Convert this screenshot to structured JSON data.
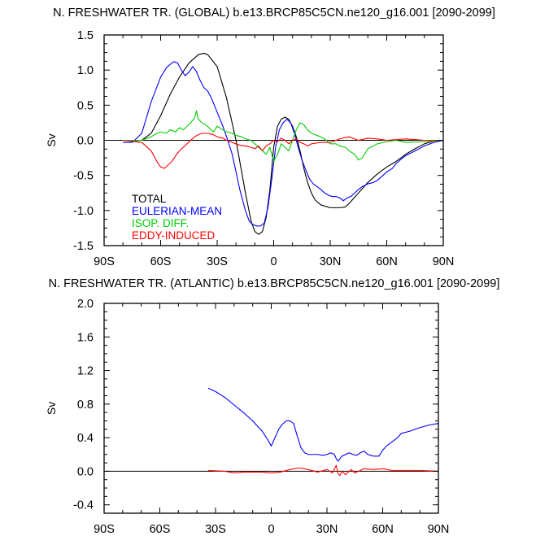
{
  "chart_data": [
    {
      "type": "line",
      "title": "N. FRESHWATER TR. (GLOBAL) b.e13.BRCP85C5CN.ne120_g16.001 [2090-2099]",
      "ylabel": "Sv",
      "xlabel": "",
      "xlim": [
        -90,
        90
      ],
      "ylim": [
        -1.5,
        1.5
      ],
      "xticks": [
        {
          "v": -90,
          "label": "90S"
        },
        {
          "v": -60,
          "label": "60S"
        },
        {
          "v": -30,
          "label": "30S"
        },
        {
          "v": 0,
          "label": "0"
        },
        {
          "v": 30,
          "label": "30N"
        },
        {
          "v": 60,
          "label": "60N"
        },
        {
          "v": 90,
          "label": "90N"
        }
      ],
      "yticks": [
        {
          "v": 1.5,
          "label": "1.5"
        },
        {
          "v": 1.0,
          "label": "1.0"
        },
        {
          "v": 0.5,
          "label": "0.5"
        },
        {
          "v": 0.0,
          "label": "0.0"
        },
        {
          "v": -0.5,
          "label": "-0.5"
        },
        {
          "v": -1.0,
          "label": "-1.0"
        },
        {
          "v": -1.5,
          "label": "-1.5"
        }
      ],
      "zero_line": true,
      "legend_position": "bottom-left",
      "series": [
        {
          "name": "TOTAL",
          "color": "#000000",
          "x": [
            -80,
            -75,
            -70,
            -65,
            -60,
            -55,
            -50,
            -45,
            -40,
            -37,
            -35,
            -30,
            -25,
            -20,
            -15,
            -12,
            -10,
            -8,
            -6,
            -4,
            -2,
            0,
            2,
            4,
            6,
            8,
            10,
            12,
            14,
            16,
            18,
            20,
            22,
            25,
            30,
            35,
            38,
            40,
            45,
            50,
            55,
            60,
            65,
            70,
            75,
            80,
            85,
            90
          ],
          "y": [
            0.0,
            -0.01,
            0.0,
            0.1,
            0.35,
            0.65,
            0.9,
            1.1,
            1.22,
            1.24,
            1.22,
            1.05,
            0.6,
            0.0,
            -0.75,
            -1.15,
            -1.3,
            -1.34,
            -1.3,
            -1.1,
            -0.7,
            -0.1,
            0.2,
            0.3,
            0.33,
            0.3,
            0.2,
            0.05,
            -0.15,
            -0.4,
            -0.6,
            -0.75,
            -0.85,
            -0.92,
            -0.96,
            -0.96,
            -0.95,
            -0.9,
            -0.75,
            -0.6,
            -0.48,
            -0.38,
            -0.3,
            -0.2,
            -0.12,
            -0.05,
            -0.01,
            0.0
          ]
        },
        {
          "name": "EULERIAN-MEAN",
          "color": "#0000ff",
          "x": [
            -80,
            -75,
            -70,
            -65,
            -60,
            -57,
            -55,
            -53,
            -51,
            -49,
            -47,
            -45,
            -43,
            -41,
            -39,
            -37,
            -35,
            -33,
            -30,
            -27,
            -25,
            -22,
            -20,
            -18,
            -15,
            -13,
            -11,
            -9,
            -7,
            -5,
            -3,
            -1,
            1,
            3,
            5,
            7,
            9,
            11,
            13,
            15,
            17,
            19,
            21,
            23,
            25,
            27,
            29,
            31,
            33,
            35,
            37,
            39,
            41,
            43,
            45,
            47,
            50,
            53,
            55,
            58,
            60,
            63,
            65,
            68,
            70,
            75,
            80,
            85,
            90
          ],
          "y": [
            -0.03,
            -0.03,
            0.1,
            0.55,
            0.9,
            1.03,
            1.08,
            1.12,
            1.1,
            1.0,
            0.92,
            0.97,
            1.05,
            0.98,
            0.85,
            0.75,
            0.7,
            0.6,
            0.4,
            0.2,
            0.05,
            -0.2,
            -0.45,
            -0.7,
            -1.0,
            -1.15,
            -1.2,
            -1.22,
            -1.22,
            -1.18,
            -0.95,
            -0.55,
            -0.1,
            0.15,
            0.25,
            0.3,
            0.25,
            0.1,
            -0.1,
            -0.28,
            -0.42,
            -0.55,
            -0.62,
            -0.66,
            -0.7,
            -0.75,
            -0.78,
            -0.8,
            -0.8,
            -0.82,
            -0.86,
            -0.82,
            -0.8,
            -0.75,
            -0.7,
            -0.66,
            -0.62,
            -0.6,
            -0.57,
            -0.5,
            -0.45,
            -0.4,
            -0.33,
            -0.26,
            -0.22,
            -0.15,
            -0.08,
            -0.03,
            0.0
          ]
        },
        {
          "name": "ISOP. DIFF.",
          "color": "#00cc00",
          "x": [
            -80,
            -70,
            -65,
            -62,
            -60,
            -57,
            -55,
            -52,
            -50,
            -48,
            -46,
            -44,
            -42,
            -41,
            -40,
            -38,
            -36,
            -34,
            -32,
            -30,
            -27,
            -25,
            -22,
            -20,
            -17,
            -15,
            -12,
            -10,
            -8,
            -6,
            -4,
            -2,
            0,
            2,
            4,
            6,
            8,
            10,
            12,
            14,
            16,
            18,
            20,
            22,
            25,
            28,
            30,
            33,
            35,
            38,
            40,
            43,
            45,
            47,
            50,
            55,
            60,
            65,
            70,
            80,
            90
          ],
          "y": [
            0.0,
            0.0,
            0.05,
            0.1,
            0.12,
            0.1,
            0.15,
            0.12,
            0.18,
            0.15,
            0.2,
            0.25,
            0.32,
            0.42,
            0.3,
            0.25,
            0.22,
            0.17,
            0.12,
            0.2,
            0.15,
            0.12,
            0.1,
            0.07,
            0.05,
            0.02,
            0.0,
            -0.05,
            -0.1,
            -0.15,
            -0.2,
            -0.1,
            -0.3,
            -0.2,
            -0.05,
            -0.1,
            -0.15,
            0.0,
            0.15,
            0.25,
            0.22,
            0.15,
            0.1,
            0.08,
            0.05,
            0.0,
            -0.05,
            -0.05,
            -0.08,
            -0.1,
            -0.15,
            -0.2,
            -0.28,
            -0.25,
            -0.12,
            -0.05,
            -0.02,
            0.0,
            -0.03,
            -0.02,
            0.0
          ]
        },
        {
          "name": "EDDY-INDUCED",
          "color": "#ff0000",
          "x": [
            -80,
            -70,
            -65,
            -62,
            -60,
            -58,
            -56,
            -54,
            -52,
            -50,
            -48,
            -46,
            -44,
            -42,
            -40,
            -38,
            -35,
            -32,
            -30,
            -27,
            -25,
            -22,
            -20,
            -18,
            -15,
            -12,
            -10,
            -8,
            -6,
            -4,
            -2,
            0,
            2,
            4,
            6,
            8,
            10,
            12,
            14,
            16,
            18,
            20,
            25,
            30,
            35,
            40,
            45,
            50,
            55,
            60,
            70,
            80,
            90
          ],
          "y": [
            0.0,
            -0.03,
            -0.15,
            -0.3,
            -0.38,
            -0.4,
            -0.35,
            -0.3,
            -0.22,
            -0.15,
            -0.1,
            -0.05,
            0.0,
            0.05,
            0.08,
            0.1,
            0.1,
            0.08,
            0.05,
            0.03,
            0.0,
            -0.03,
            -0.05,
            -0.07,
            -0.08,
            -0.1,
            -0.12,
            -0.08,
            -0.15,
            -0.08,
            -0.05,
            0.0,
            -0.02,
            0.03,
            0.0,
            -0.05,
            0.0,
            0.02,
            -0.03,
            -0.05,
            -0.08,
            -0.05,
            -0.03,
            -0.03,
            0.02,
            0.05,
            0.0,
            0.03,
            0.02,
            0.0,
            0.02,
            0.0,
            0.0
          ]
        }
      ]
    },
    {
      "type": "line",
      "title": "N. FRESHWATER TR. (ATLANTIC) b.e13.BRCP85C5CN.ne120_g16.001 [2090-2099]",
      "ylabel": "Sv",
      "xlabel": "",
      "xlim": [
        -90,
        90
      ],
      "ylim": [
        -0.5,
        2.0
      ],
      "xticks": [
        {
          "v": -90,
          "label": "90S"
        },
        {
          "v": -60,
          "label": "60S"
        },
        {
          "v": -30,
          "label": "30S"
        },
        {
          "v": 0,
          "label": "0"
        },
        {
          "v": 30,
          "label": "30N"
        },
        {
          "v": 60,
          "label": "60N"
        },
        {
          "v": 90,
          "label": "90N"
        }
      ],
      "yticks": [
        {
          "v": 2.0,
          "label": "2.0"
        },
        {
          "v": 1.6,
          "label": "1.6"
        },
        {
          "v": 1.2,
          "label": "1.2"
        },
        {
          "v": 0.8,
          "label": "0.8"
        },
        {
          "v": 0.4,
          "label": "0.4"
        },
        {
          "v": 0.0,
          "label": "0.0"
        },
        {
          "v": -0.4,
          "label": "-0.4"
        }
      ],
      "zero_line": true,
      "series": [
        {
          "color": "#0000ff",
          "x": [
            -34,
            -30,
            -25,
            -20,
            -15,
            -10,
            -5,
            -2,
            0,
            2,
            4,
            6,
            8,
            10,
            12,
            14,
            16,
            18,
            20,
            22,
            25,
            28,
            30,
            32,
            34,
            35,
            36,
            38,
            40,
            42,
            44,
            46,
            48,
            50,
            52,
            55,
            58,
            60,
            62,
            65,
            68,
            70,
            75,
            80,
            85,
            90
          ],
          "y": [
            0.99,
            0.95,
            0.88,
            0.79,
            0.7,
            0.6,
            0.48,
            0.38,
            0.3,
            0.4,
            0.5,
            0.56,
            0.6,
            0.6,
            0.57,
            0.42,
            0.28,
            0.22,
            0.2,
            0.2,
            0.2,
            0.19,
            0.2,
            0.22,
            0.2,
            0.15,
            0.12,
            0.18,
            0.2,
            0.22,
            0.2,
            0.19,
            0.22,
            0.24,
            0.2,
            0.18,
            0.18,
            0.25,
            0.3,
            0.35,
            0.4,
            0.45,
            0.48,
            0.52,
            0.55,
            0.57
          ]
        },
        {
          "color": "#ff0000",
          "x": [
            -34,
            -25,
            -20,
            -15,
            -10,
            -5,
            0,
            5,
            10,
            15,
            20,
            25,
            30,
            33,
            35,
            36,
            37,
            38,
            40,
            43,
            45,
            50,
            55,
            60,
            65,
            70,
            80,
            90
          ],
          "y": [
            0.01,
            0.0,
            -0.02,
            -0.01,
            -0.01,
            -0.01,
            -0.02,
            -0.01,
            0.02,
            0.04,
            0.02,
            -0.01,
            0.02,
            -0.02,
            0.07,
            -0.03,
            -0.05,
            0.0,
            -0.04,
            0.02,
            -0.02,
            0.03,
            0.02,
            0.03,
            0.01,
            0.01,
            0.01,
            0.0
          ]
        }
      ]
    }
  ]
}
